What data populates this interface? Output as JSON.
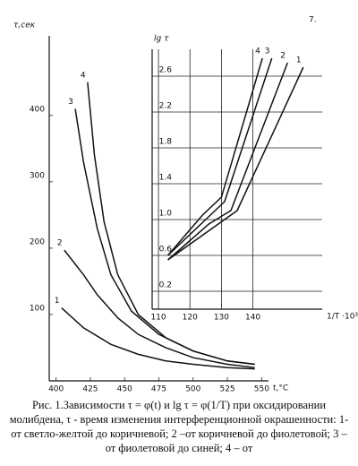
{
  "page_number": "7.",
  "chart_data": [
    {
      "type": "line",
      "ylabel": "τ,сек",
      "xlabel": "t,°C",
      "xlim": [
        395,
        555
      ],
      "ylim": [
        0,
        520
      ],
      "xticks": [
        400,
        425,
        450,
        475,
        500,
        525,
        550
      ],
      "yticks": [
        100,
        200,
        300,
        400
      ],
      "series": [
        {
          "name": "1",
          "color": "#111",
          "x": [
            404,
            420,
            440,
            460,
            480,
            500,
            525,
            545
          ],
          "values": [
            110,
            80,
            55,
            40,
            30,
            25,
            20,
            18
          ]
        },
        {
          "name": "2",
          "color": "#111",
          "x": [
            406,
            420,
            430,
            445,
            460,
            480,
            500,
            525,
            545
          ],
          "values": [
            197,
            160,
            130,
            95,
            70,
            50,
            35,
            25,
            20
          ]
        },
        {
          "name": "3",
          "color": "#111",
          "x": [
            414,
            420,
            430,
            440,
            455,
            475,
            500,
            525,
            545
          ],
          "values": [
            410,
            330,
            230,
            160,
            105,
            70,
            45,
            30,
            25
          ]
        },
        {
          "name": "4",
          "color": "#111",
          "x": [
            423,
            428,
            435,
            445,
            460,
            480,
            500,
            525,
            545
          ],
          "values": [
            450,
            340,
            240,
            160,
            100,
            65,
            45,
            30,
            25
          ]
        }
      ]
    },
    {
      "type": "line",
      "ylabel": "lg τ",
      "xlabel": "1/T ·10³",
      "grid": true,
      "xlim": [
        108,
        162
      ],
      "ylim": [
        0,
        2.9
      ],
      "xticks": [
        110,
        120,
        130,
        140
      ],
      "yticks": [
        0.2,
        0.6,
        {
          "value": 1,
          "label": "1.0"
        },
        1.4,
        1.8,
        2.2,
        2.6
      ],
      "series": [
        {
          "name": "1",
          "color": "#111",
          "x": [
            113,
            127,
            135,
            156
          ],
          "values": [
            0.55,
            0.9,
            1.1,
            2.7
          ]
        },
        {
          "name": "2",
          "color": "#111",
          "x": [
            113,
            126,
            133,
            151
          ],
          "values": [
            0.55,
            0.95,
            1.1,
            2.75
          ]
        },
        {
          "name": "3",
          "color": "#111",
          "x": [
            113,
            125,
            131,
            146
          ],
          "values": [
            0.6,
            1.0,
            1.2,
            2.8
          ]
        },
        {
          "name": "4",
          "color": "#111",
          "x": [
            113,
            124,
            130,
            143
          ],
          "values": [
            0.6,
            1.05,
            1.25,
            2.8
          ]
        }
      ]
    }
  ],
  "caption": "Рис. 1.Зависимости τ = φ(t) и lg τ = φ(1/T) при оксидировании молибдена, τ - время изменения интерференционной окрашенности: 1- от светло-желтой до коричневой; 2 –от коричневой до фиолетовой; 3 –от фиолетовой до синей; 4 – от"
}
